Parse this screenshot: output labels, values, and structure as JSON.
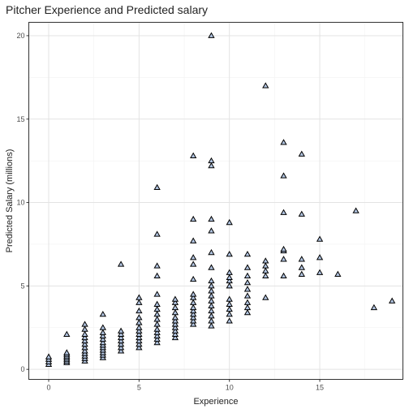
{
  "chart_data": {
    "type": "scatter",
    "title": "Pitcher Experience and Predicted salary",
    "xlabel": "Experience",
    "ylabel": "Predicted Salary (millions)",
    "xlim": [
      -1.1,
      19.6
    ],
    "ylim": [
      -0.6,
      20.8
    ],
    "x_ticks": [
      0,
      5,
      10,
      15
    ],
    "y_ticks": [
      0,
      5,
      10,
      15,
      20
    ],
    "x_tick_labels": [
      "0",
      "5",
      "10",
      "15"
    ],
    "y_tick_labels": [
      "0",
      "5",
      "10",
      "15",
      "20"
    ],
    "grid": true,
    "marker": "triangle",
    "marker_fill": "#b3c6e3",
    "marker_stroke": "#000000",
    "points": [
      [
        0,
        0.3
      ],
      [
        0,
        0.45
      ],
      [
        0,
        0.6
      ],
      [
        0,
        0.75
      ],
      [
        1,
        0.4
      ],
      [
        1,
        0.5
      ],
      [
        1,
        0.6
      ],
      [
        1,
        0.7
      ],
      [
        1,
        0.8
      ],
      [
        1,
        0.9
      ],
      [
        1,
        1.0
      ],
      [
        1,
        2.1
      ],
      [
        2,
        0.5
      ],
      [
        2,
        0.65
      ],
      [
        2,
        0.8
      ],
      [
        2,
        0.95
      ],
      [
        2,
        1.1
      ],
      [
        2,
        1.3
      ],
      [
        2,
        1.5
      ],
      [
        2,
        1.7
      ],
      [
        2,
        1.9
      ],
      [
        2,
        2.1
      ],
      [
        2,
        2.4
      ],
      [
        2,
        2.7
      ],
      [
        3,
        0.7
      ],
      [
        3,
        0.85
      ],
      [
        3,
        1.0
      ],
      [
        3,
        1.15
      ],
      [
        3,
        1.3
      ],
      [
        3,
        1.45
      ],
      [
        3,
        1.6
      ],
      [
        3,
        1.8
      ],
      [
        3,
        2.0
      ],
      [
        3,
        2.2
      ],
      [
        3,
        2.5
      ],
      [
        3,
        3.3
      ],
      [
        4,
        1.1
      ],
      [
        4,
        1.3
      ],
      [
        4,
        1.5
      ],
      [
        4,
        1.7
      ],
      [
        4,
        1.9
      ],
      [
        4,
        2.1
      ],
      [
        4,
        2.3
      ],
      [
        4,
        6.3
      ],
      [
        5,
        1.3
      ],
      [
        5,
        1.5
      ],
      [
        5,
        1.7
      ],
      [
        5,
        1.9
      ],
      [
        5,
        2.1
      ],
      [
        5,
        2.3
      ],
      [
        5,
        2.5
      ],
      [
        5,
        2.8
      ],
      [
        5,
        3.1
      ],
      [
        5,
        3.5
      ],
      [
        5,
        4.0
      ],
      [
        5,
        4.3
      ],
      [
        6,
        1.6
      ],
      [
        6,
        1.8
      ],
      [
        6,
        2.0
      ],
      [
        6,
        2.2
      ],
      [
        6,
        2.4
      ],
      [
        6,
        2.7
      ],
      [
        6,
        3.0
      ],
      [
        6,
        3.3
      ],
      [
        6,
        3.6
      ],
      [
        6,
        3.9
      ],
      [
        6,
        4.5
      ],
      [
        6,
        5.6
      ],
      [
        6,
        6.2
      ],
      [
        6,
        8.1
      ],
      [
        6,
        10.9
      ],
      [
        7,
        1.9
      ],
      [
        7,
        2.1
      ],
      [
        7,
        2.3
      ],
      [
        7,
        2.5
      ],
      [
        7,
        2.7
      ],
      [
        7,
        2.9
      ],
      [
        7,
        3.1
      ],
      [
        7,
        3.4
      ],
      [
        7,
        3.7
      ],
      [
        7,
        4.0
      ],
      [
        7,
        4.2
      ],
      [
        8,
        2.7
      ],
      [
        8,
        2.9
      ],
      [
        8,
        3.1
      ],
      [
        8,
        3.3
      ],
      [
        8,
        3.5
      ],
      [
        8,
        3.7
      ],
      [
        8,
        4.0
      ],
      [
        8,
        4.3
      ],
      [
        8,
        4.5
      ],
      [
        8,
        5.4
      ],
      [
        8,
        6.3
      ],
      [
        8,
        6.7
      ],
      [
        8,
        7.7
      ],
      [
        8,
        9.0
      ],
      [
        8,
        12.8
      ],
      [
        9,
        2.6
      ],
      [
        9,
        2.9
      ],
      [
        9,
        3.2
      ],
      [
        9,
        3.5
      ],
      [
        9,
        3.8
      ],
      [
        9,
        4.1
      ],
      [
        9,
        4.4
      ],
      [
        9,
        4.7
      ],
      [
        9,
        5.0
      ],
      [
        9,
        5.3
      ],
      [
        9,
        6.1
      ],
      [
        9,
        7.0
      ],
      [
        9,
        8.3
      ],
      [
        9,
        9.0
      ],
      [
        9,
        12.2
      ],
      [
        9,
        12.5
      ],
      [
        9,
        20.0
      ],
      [
        10,
        2.9
      ],
      [
        10,
        3.3
      ],
      [
        10,
        3.6
      ],
      [
        10,
        3.9
      ],
      [
        10,
        4.2
      ],
      [
        10,
        5.0
      ],
      [
        10,
        5.3
      ],
      [
        10,
        5.5
      ],
      [
        10,
        5.8
      ],
      [
        10,
        6.9
      ],
      [
        10,
        8.8
      ],
      [
        11,
        3.4
      ],
      [
        11,
        3.7
      ],
      [
        11,
        4.0
      ],
      [
        11,
        4.4
      ],
      [
        11,
        4.8
      ],
      [
        11,
        5.2
      ],
      [
        11,
        5.6
      ],
      [
        11,
        6.1
      ],
      [
        11,
        6.9
      ],
      [
        12,
        4.3
      ],
      [
        12,
        5.6
      ],
      [
        12,
        5.9
      ],
      [
        12,
        6.2
      ],
      [
        12,
        6.5
      ],
      [
        12,
        17.0
      ],
      [
        13,
        5.6
      ],
      [
        13,
        6.6
      ],
      [
        13,
        7.1
      ],
      [
        13,
        7.2
      ],
      [
        13,
        9.4
      ],
      [
        13,
        11.6
      ],
      [
        13,
        13.6
      ],
      [
        14,
        5.7
      ],
      [
        14,
        6.1
      ],
      [
        14,
        6.6
      ],
      [
        14,
        9.3
      ],
      [
        14,
        12.9
      ],
      [
        15,
        5.8
      ],
      [
        15,
        6.7
      ],
      [
        15,
        7.8
      ],
      [
        16,
        5.7
      ],
      [
        17,
        9.5
      ],
      [
        18,
        3.7
      ],
      [
        19,
        4.1
      ]
    ]
  }
}
